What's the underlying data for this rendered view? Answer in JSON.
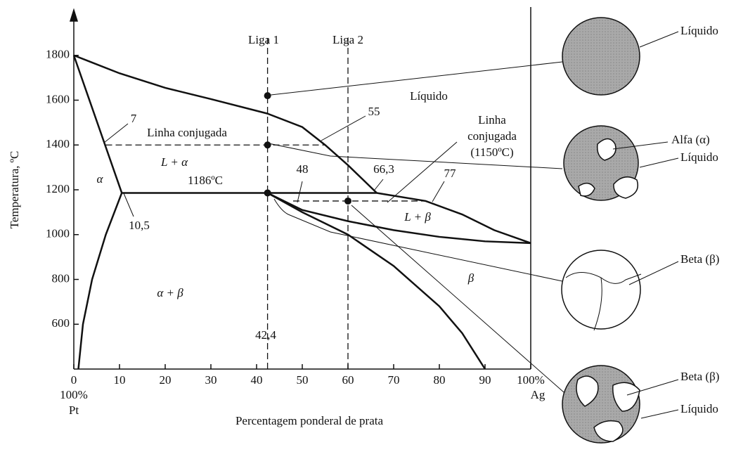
{
  "chart_data": {
    "type": "line",
    "y_label": "Temperatura, ºC",
    "x_label": "Percentagem ponderal de prata",
    "xlim": [
      0,
      100
    ],
    "ylim": [
      400,
      2000
    ],
    "xticks": [
      0,
      10,
      20,
      30,
      40,
      50,
      60,
      70,
      80,
      90,
      {
        "value": 100,
        "label": "100%"
      }
    ],
    "yticks": [
      600,
      800,
      1000,
      1200,
      1400,
      1600,
      1800
    ],
    "series": [
      {
        "color": "#111111",
        "x": [
          0,
          10,
          20,
          30,
          42.4,
          50,
          55,
          60,
          66.3
        ],
        "values": [
          1800,
          1720,
          1655,
          1605,
          1540,
          1480,
          1400,
          1310,
          1186
        ]
      },
      {
        "color": "#111111",
        "x": [
          0,
          10.5
        ],
        "values": [
          1800,
          1186
        ]
      },
      {
        "color": "#111111",
        "x": [
          10.5,
          7,
          4,
          2,
          1
        ],
        "values": [
          1186,
          1000,
          800,
          600,
          400
        ]
      },
      {
        "color": "#111111",
        "x": [
          10.5,
          66.3
        ],
        "values": [
          1186,
          1186
        ]
      },
      {
        "color": "#111111",
        "x": [
          66.3,
          77,
          85,
          92,
          100
        ],
        "values": [
          1186,
          1150,
          1090,
          1020,
          962
        ]
      },
      {
        "color": "#111111",
        "x": [
          42.4,
          50,
          60,
          70,
          80,
          90,
          100
        ],
        "values": [
          1186,
          1110,
          1060,
          1020,
          990,
          970,
          962
        ]
      },
      {
        "color": "#111111",
        "x": [
          42.4,
          50,
          60,
          70,
          80,
          85,
          90
        ],
        "values": [
          1186,
          1100,
          1000,
          860,
          680,
          560,
          400
        ]
      }
    ],
    "tie_lines": [
      {
        "x": [
          7,
          55
        ],
        "values": [
          1400,
          1400
        ]
      },
      {
        "x": [
          48,
          77
        ],
        "values": [
          1150,
          1150
        ]
      },
      {
        "x": [
          42.4,
          42.4
        ],
        "values": [
          400,
          1880
        ]
      },
      {
        "x": [
          60,
          60
        ],
        "values": [
          400,
          1880
        ]
      }
    ],
    "points": {
      "x": [
        42.4,
        42.4,
        42.4,
        60
      ],
      "values": [
        1620,
        1400,
        1186,
        1150
      ]
    },
    "annotations": {
      "liga1": "Liga 1",
      "liga2": "Liga 2",
      "liquido": "Líquido",
      "linha": "Linha conjugada",
      "l_alpha": "L + α",
      "alpha": "α",
      "t1186": "1186ºC",
      "alpha_beta": "α + β",
      "beta": "β",
      "l_beta": "L + β",
      "linha2a": "Linha",
      "linha2b": "conjugada",
      "linha2c": "(1150ºC)",
      "n7": "7",
      "n55": "55",
      "n10_5": "10,5",
      "n48": "48",
      "n66_3": "66,3",
      "n77": "77",
      "n42_4": "42,4",
      "pct0": "100%",
      "pt": "Pt",
      "ag": "Ag"
    },
    "micro": [
      "Líquido",
      "Alfa (α)",
      "Líquido",
      "Beta (β)",
      "Beta (β)",
      "Líquido"
    ]
  }
}
